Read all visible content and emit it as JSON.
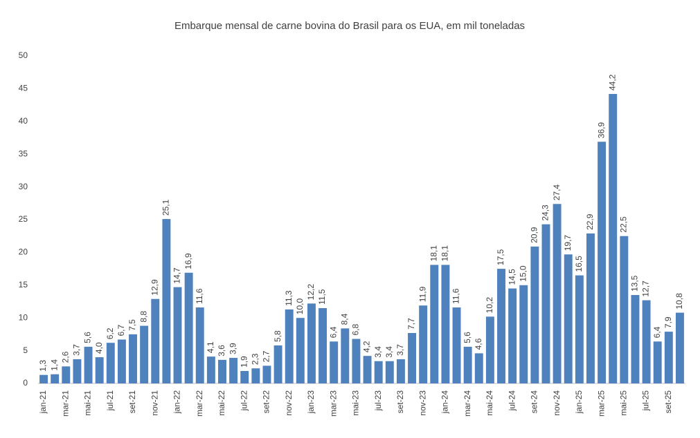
{
  "chart_data": {
    "type": "bar",
    "title": "Embarque mensal de carne bovina do Brasil para os EUA, em mil toneladas",
    "categories": [
      "jan-21",
      null,
      "mar-21",
      null,
      "mai-21",
      null,
      "jul-21",
      null,
      "set-21",
      null,
      "nov-21",
      null,
      "jan-22",
      null,
      "mar-22",
      null,
      "mai-22",
      null,
      "jul-22",
      null,
      "set-22",
      null,
      "nov-22",
      null,
      "jan-23",
      null,
      "mar-23",
      null,
      "mai-23",
      null,
      "jul-23",
      null,
      "set-23",
      null,
      "nov-23",
      null,
      "jan-24",
      null,
      "mar-24",
      null,
      "mai-24",
      null,
      "jul-24",
      null,
      "set-24",
      null,
      "nov-24",
      null,
      "jan-25",
      null,
      "mar-25",
      null,
      "mai-25",
      null,
      "jul-25",
      null,
      "set-25",
      null
    ],
    "values": [
      1.3,
      1.4,
      2.6,
      3.7,
      5.6,
      4.0,
      6.2,
      6.7,
      7.5,
      8.8,
      12.9,
      25.1,
      14.7,
      16.9,
      11.6,
      4.1,
      3.6,
      3.9,
      1.9,
      2.3,
      2.7,
      5.8,
      11.3,
      10.0,
      12.2,
      11.5,
      6.4,
      8.4,
      6.8,
      4.2,
      3.4,
      3.4,
      3.7,
      7.7,
      11.9,
      18.1,
      18.1,
      11.6,
      5.6,
      4.6,
      10.2,
      17.5,
      14.5,
      15.0,
      20.9,
      24.3,
      27.4,
      19.7,
      16.5,
      22.9,
      36.9,
      44.2,
      22.5,
      13.5,
      12.7,
      6.4,
      7.9,
      10.8
    ],
    "value_labels": [
      "1,3",
      "1,4",
      "2,6",
      "3,7",
      "5,6",
      "4,0",
      "6,2",
      "6,7",
      "7,5",
      "8,8",
      "12,9",
      "25,1",
      "14,7",
      "16,9",
      "11,6",
      "4,1",
      "3,6",
      "3,9",
      "1,9",
      "2,3",
      "2,7",
      "5,8",
      "11,3",
      "10,0",
      "12,2",
      "11,5",
      "6,4",
      "8,4",
      "6,8",
      "4,2",
      "3,4",
      "3,4",
      "3,7",
      "7,7",
      "11,9",
      "18,1",
      "18,1",
      "11,6",
      "5,6",
      "4,6",
      "10,2",
      "17,5",
      "14,5",
      "15,0",
      "20,9",
      "24,3",
      "27,4",
      "19,7",
      "16,5",
      "22,9",
      "36,9",
      "44,2",
      "22,5",
      "13,5",
      "12,7",
      "6,4",
      "7,9",
      "10,8"
    ],
    "color": "#4f81bd",
    "ylim": [
      0,
      50
    ],
    "yticks": [
      0,
      5,
      10,
      15,
      20,
      25,
      30,
      35,
      40,
      45,
      50
    ],
    "grid": false
  }
}
